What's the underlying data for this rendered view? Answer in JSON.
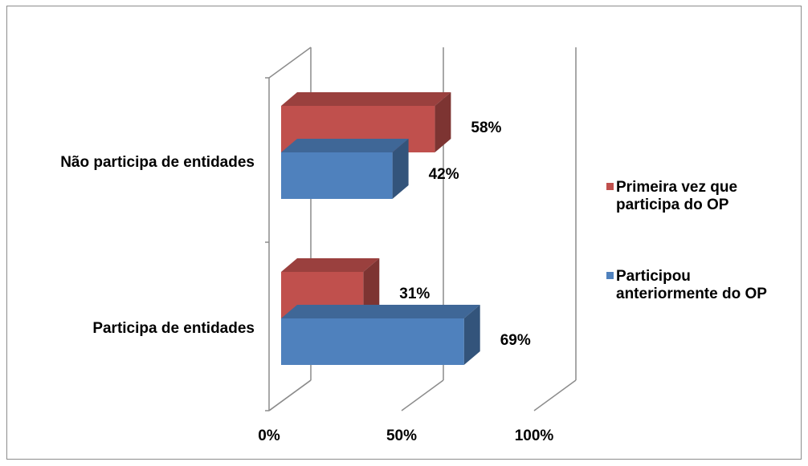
{
  "chart_data": {
    "type": "bar",
    "orientation": "horizontal",
    "three_d": true,
    "categories": [
      "Não participa de entidades",
      "Participa de entidades"
    ],
    "series": [
      {
        "name": "Primeira vez que participa do OP",
        "values": [
          58,
          31
        ],
        "color": "#C0504D"
      },
      {
        "name": "Participou anteriormente do OP",
        "values": [
          42,
          69
        ],
        "color": "#4F81BD"
      }
    ],
    "data_labels": [
      [
        "58%",
        "31%"
      ],
      [
        "42%",
        "69%"
      ]
    ],
    "xlim": [
      0,
      100
    ],
    "x_ticks": [
      0,
      50,
      100
    ],
    "x_tick_labels": [
      "0%",
      "50%",
      "100%"
    ],
    "grid": true,
    "legend_position": "right",
    "legend": [
      {
        "lines": [
          "Primeira vez que",
          "participa do OP"
        ],
        "color": "#C0504D"
      },
      {
        "lines": [
          "Participou",
          "anteriormente do OP"
        ],
        "color": "#4F81BD"
      }
    ]
  }
}
